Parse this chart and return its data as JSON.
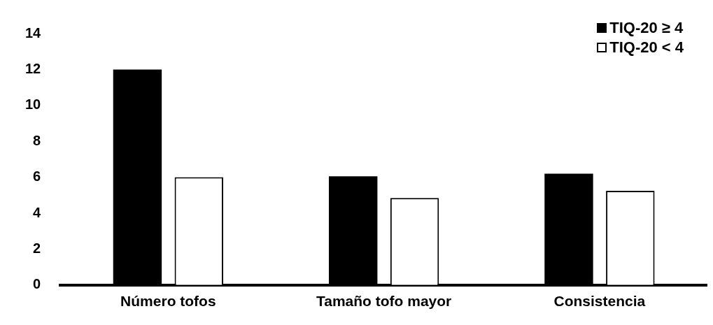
{
  "chart_data": {
    "type": "bar",
    "categories": [
      "Número tofos",
      "Tamaño tofo mayor",
      "Consistencia"
    ],
    "series": [
      {
        "name": "TIQ-20 ≥ 4",
        "color": "#000000",
        "values": [
          12,
          6.05,
          6.2
        ]
      },
      {
        "name": "TIQ-20 < 4",
        "color": "#ffffff",
        "values": [
          6,
          4.85,
          5.25
        ]
      }
    ],
    "ylim": [
      0,
      14
    ],
    "yticks": [
      0,
      2,
      4,
      6,
      8,
      10,
      12,
      14
    ],
    "grid": false,
    "legend": "top right"
  }
}
